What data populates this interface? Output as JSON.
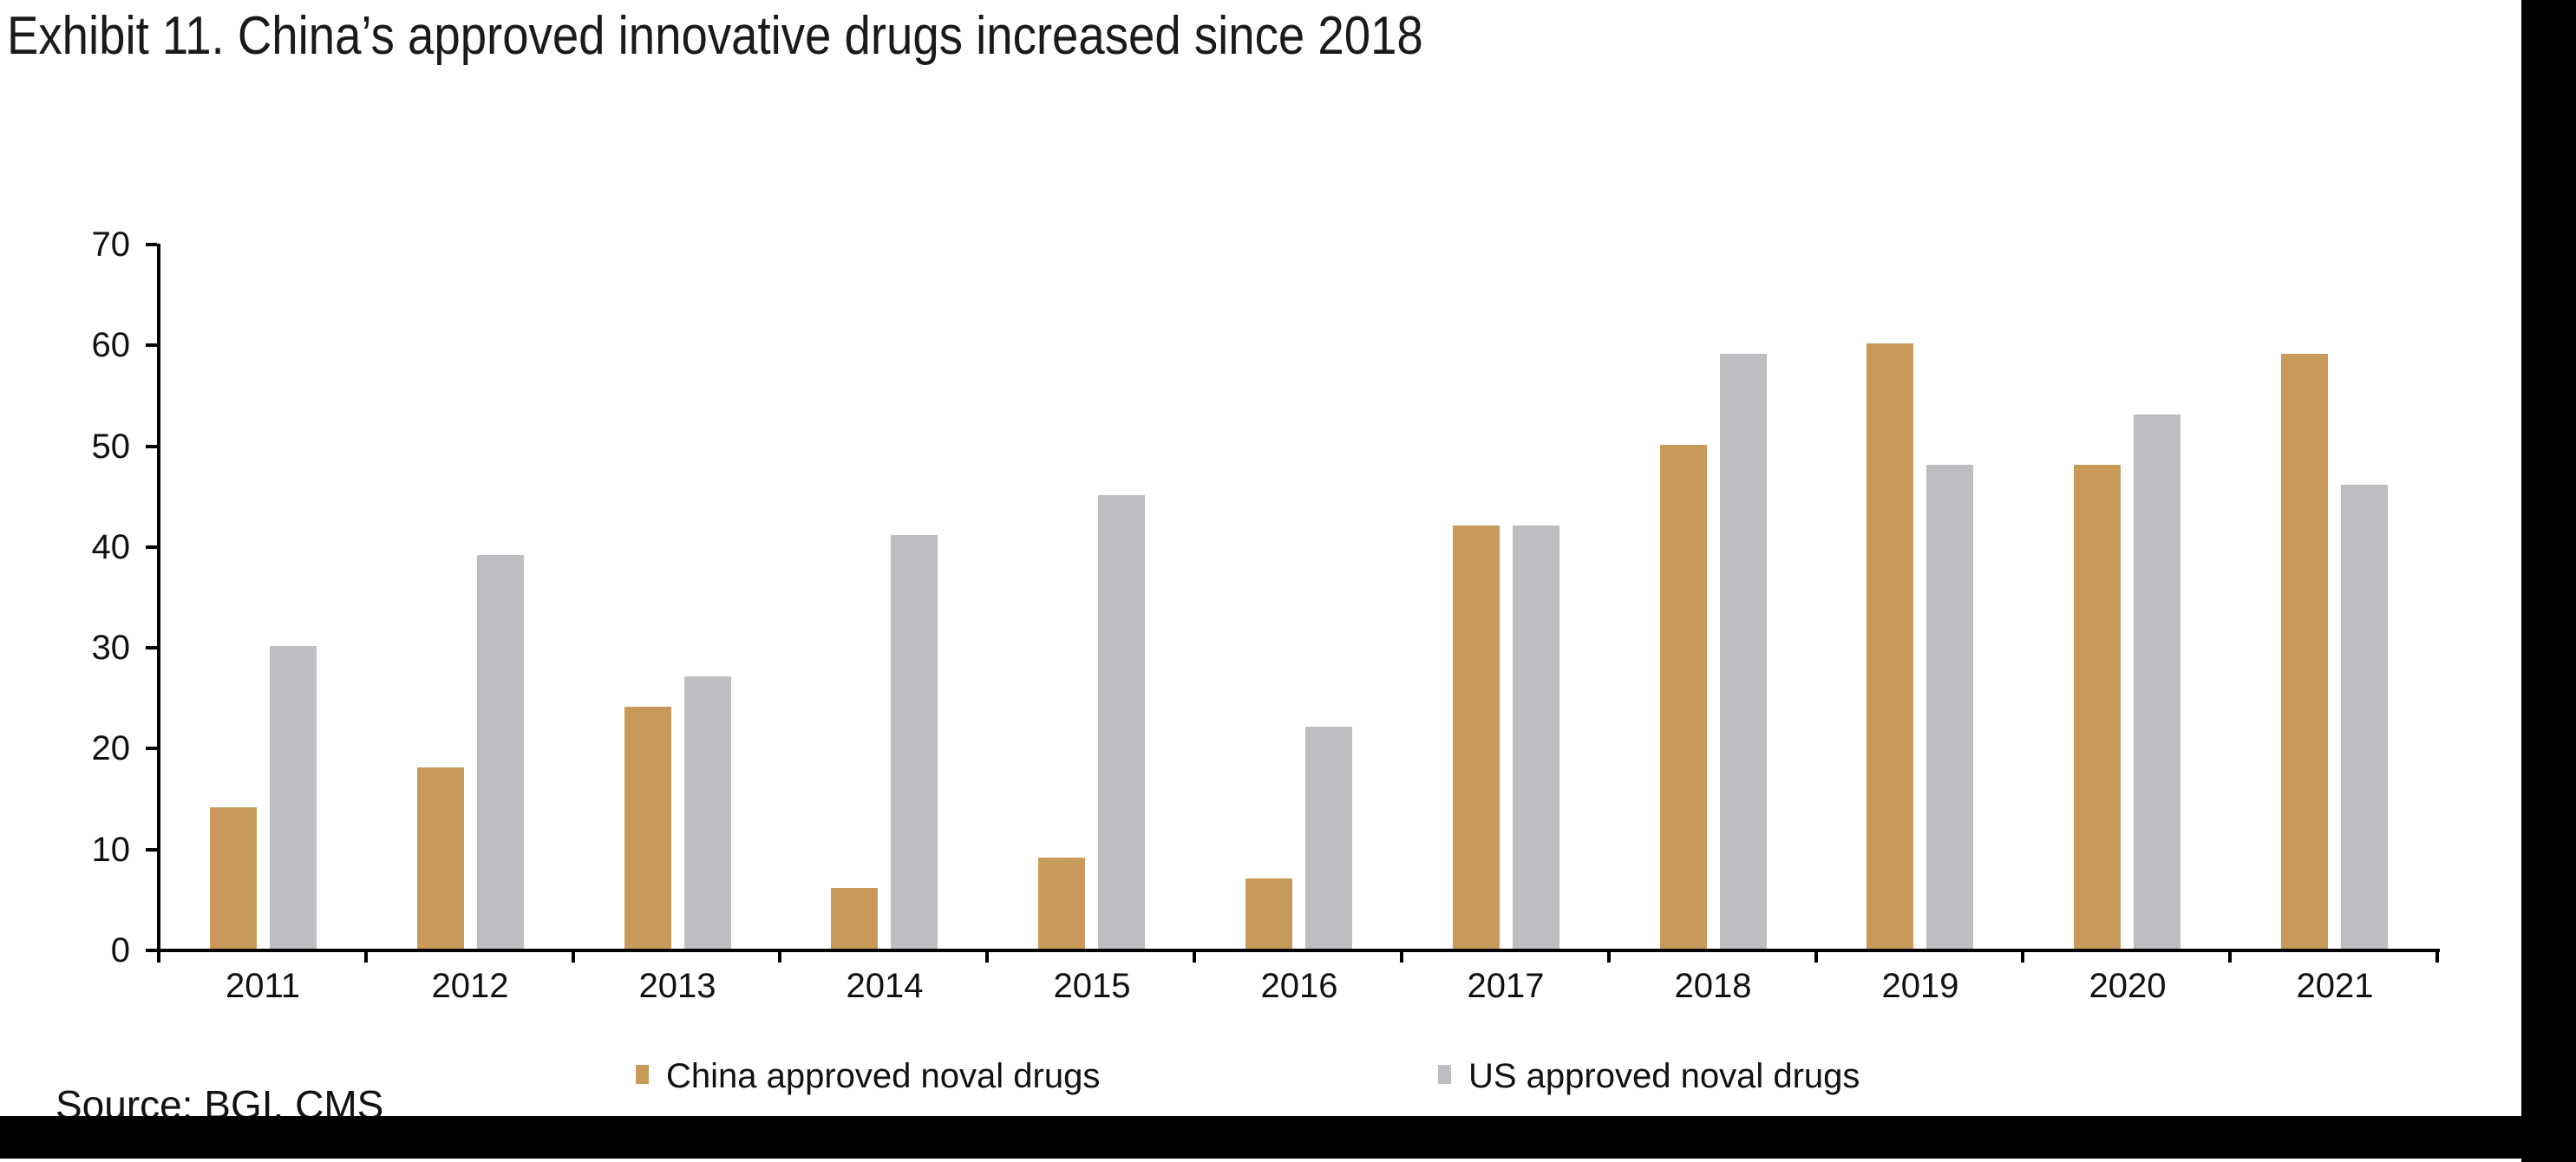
{
  "title": "Exhibit 11. China’s approved innovative drugs increased since 2018",
  "source_text": "Source: BGI, CMS",
  "colors": {
    "china_bar": "#C79A59",
    "us_bar": "#BDBEC2",
    "axis": "#000000",
    "text": "#111111",
    "mask": "#000000",
    "background": "#FFFFFF"
  },
  "chart_data": {
    "type": "bar",
    "title": "Exhibit 11. China’s approved innovative drugs increased since 2018",
    "categories": [
      "2011",
      "2012",
      "2013",
      "2014",
      "2015",
      "2016",
      "2017",
      "2018",
      "2019",
      "2020",
      "2021"
    ],
    "series": [
      {
        "name": "China approved noval drugs",
        "color": "#C79A59",
        "values": [
          14,
          18,
          24,
          6,
          9,
          7,
          42,
          50,
          60,
          48,
          59
        ]
      },
      {
        "name": "US approved noval drugs",
        "color": "#BDBEC2",
        "values": [
          30,
          39,
          27,
          41,
          45,
          22,
          42,
          59,
          48,
          53,
          46
        ]
      }
    ],
    "xlabel": "",
    "ylabel": "",
    "ylim": [
      0,
      70
    ],
    "yticks": [
      0,
      10,
      20,
      30,
      40,
      50,
      60,
      70
    ],
    "grid": false,
    "legend_position": "bottom"
  }
}
